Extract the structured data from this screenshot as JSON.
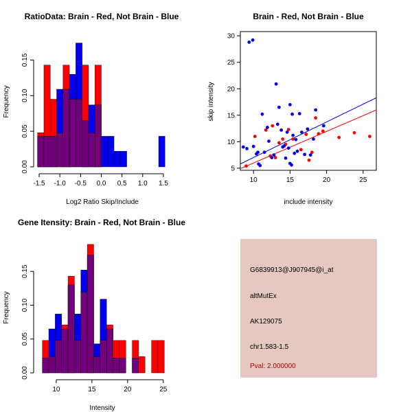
{
  "colors": {
    "red": "#ff0000",
    "blue": "#0000ee",
    "purple": "#72007a",
    "info_bg": "#e6c8c2",
    "pval": "#b40000",
    "axis": "#000000"
  },
  "chart_data": [
    {
      "id": "ratio",
      "type": "bar",
      "title": "RatioData: Brain - Red, Not Brain - Blue",
      "xlabel": "Log2 Ratio Skip/Include",
      "ylabel": "Frequency",
      "xlim": [
        -1.5,
        1.6
      ],
      "ylim": [
        0,
        0.19
      ],
      "xticks": [
        -1.5,
        -1.0,
        -0.5,
        0.0,
        0.5,
        1.0,
        1.5
      ],
      "xtick_labels": [
        "-1.5",
        "-1.0",
        "-0.5",
        "0.0",
        "0.5",
        "1.0",
        "1.5"
      ],
      "yticks": [
        0.0,
        0.05,
        0.1,
        0.15
      ],
      "ytick_labels": [
        "0.00",
        "0.05",
        "0.10",
        "0.15"
      ],
      "bin_width": 0.1538,
      "series": [
        {
          "name": "Brain",
          "color": "red",
          "bins": [
            {
              "x": -1.462,
              "v": 0.048
            },
            {
              "x": -1.308,
              "v": 0.143
            },
            {
              "x": -1.154,
              "v": 0.095
            },
            {
              "x": -1.0,
              "v": 0.048
            },
            {
              "x": -0.846,
              "v": 0.143
            },
            {
              "x": -0.692,
              "v": 0.095
            },
            {
              "x": -0.538,
              "v": 0.095
            },
            {
              "x": -0.385,
              "v": 0.143
            },
            {
              "x": -0.231,
              "v": 0.048
            },
            {
              "x": -0.077,
              "v": 0.143
            }
          ]
        },
        {
          "name": "Not Brain",
          "color": "blue",
          "bins": [
            {
              "x": -1.462,
              "v": 0.043
            },
            {
              "x": -1.308,
              "v": 0.043
            },
            {
              "x": -1.154,
              "v": 0.043
            },
            {
              "x": -1.0,
              "v": 0.109
            },
            {
              "x": -0.846,
              "v": 0.109
            },
            {
              "x": -0.692,
              "v": 0.13
            },
            {
              "x": -0.538,
              "v": 0.174
            },
            {
              "x": -0.385,
              "v": 0.065
            },
            {
              "x": -0.231,
              "v": 0.087
            },
            {
              "x": -0.077,
              "v": 0.087
            },
            {
              "x": 0.077,
              "v": 0.043
            },
            {
              "x": 0.231,
              "v": 0.043
            },
            {
              "x": 0.385,
              "v": 0.022
            },
            {
              "x": 0.538,
              "v": 0.022
            },
            {
              "x": 1.462,
              "v": 0.043
            }
          ]
        }
      ]
    },
    {
      "id": "scatter",
      "type": "scatter",
      "title": "Brain - Red, Not Brain - Blue",
      "xlabel": "include intensity",
      "ylabel": "skip intensity",
      "xlim": [
        8.2,
        26.8
      ],
      "ylim": [
        4.6,
        30.8
      ],
      "xticks": [
        10,
        15,
        20,
        25
      ],
      "xtick_labels": [
        "10",
        "15",
        "20",
        "25"
      ],
      "yticks": [
        5,
        10,
        15,
        20,
        25,
        30
      ],
      "ytick_labels": [
        "5",
        "10",
        "15",
        "20",
        "25",
        "30"
      ],
      "series": [
        {
          "name": "Brain",
          "color": "red",
          "points": [
            [
              9.0,
              5.4
            ],
            [
              10.2,
              11.0
            ],
            [
              11.7,
              12.2
            ],
            [
              12.3,
              7.3
            ],
            [
              12.6,
              13.0
            ],
            [
              13.0,
              7.0
            ],
            [
              13.5,
              9.8
            ],
            [
              14.0,
              10.5
            ],
            [
              14.4,
              9.5
            ],
            [
              14.8,
              12.3
            ],
            [
              15.4,
              10.5
            ],
            [
              16.5,
              8.5
            ],
            [
              17.2,
              11.4
            ],
            [
              17.6,
              6.5
            ],
            [
              18.0,
              8.0
            ],
            [
              18.5,
              14.5
            ],
            [
              18.9,
              11.5
            ],
            [
              19.5,
              12.0
            ],
            [
              21.7,
              10.8
            ],
            [
              23.8,
              11.7
            ],
            [
              25.9,
              11.0
            ]
          ]
        },
        {
          "name": "Not Brain",
          "color": "blue",
          "points": [
            [
              9.4,
              28.8
            ],
            [
              9.9,
              29.2
            ],
            [
              8.6,
              9.0
            ],
            [
              9.1,
              8.7
            ],
            [
              10.0,
              9.1
            ],
            [
              10.4,
              7.7
            ],
            [
              10.6,
              8.0
            ],
            [
              10.7,
              5.8
            ],
            [
              10.9,
              5.5
            ],
            [
              11.2,
              15.2
            ],
            [
              11.5,
              8.0
            ],
            [
              11.9,
              12.7
            ],
            [
              12.1,
              10.1
            ],
            [
              12.5,
              7.0
            ],
            [
              12.8,
              7.5
            ],
            [
              13.1,
              20.9
            ],
            [
              13.3,
              13.3
            ],
            [
              13.5,
              16.5
            ],
            [
              13.8,
              12.2
            ],
            [
              14.0,
              9.0
            ],
            [
              14.2,
              9.2
            ],
            [
              14.4,
              6.9
            ],
            [
              14.6,
              11.8
            ],
            [
              14.8,
              8.8
            ],
            [
              15.0,
              17.0
            ],
            [
              15.0,
              5.9
            ],
            [
              15.2,
              5.6
            ],
            [
              15.3,
              15.2
            ],
            [
              15.4,
              11.2
            ],
            [
              15.6,
              7.8
            ],
            [
              15.8,
              10.4
            ],
            [
              16.0,
              8.2
            ],
            [
              16.3,
              15.3
            ],
            [
              16.6,
              11.8
            ],
            [
              17.0,
              7.6
            ],
            [
              17.4,
              12.4
            ],
            [
              17.8,
              7.5
            ],
            [
              18.2,
              10.5
            ],
            [
              18.5,
              16.0
            ],
            [
              19.6,
              13.0
            ]
          ]
        }
      ],
      "fits": [
        {
          "name": "Not Brain fit",
          "color": "blue",
          "p1": [
            8.2,
            5.8
          ],
          "p2": [
            26.8,
            18.3
          ]
        },
        {
          "name": "Brain fit",
          "color": "red",
          "p1": [
            8.2,
            4.9
          ],
          "p2": [
            26.8,
            16.0
          ]
        }
      ]
    },
    {
      "id": "intensity",
      "type": "bar",
      "title": "Gene Itensity: Brain - Red, Not Brain - Blue",
      "xlabel": "Intensity",
      "ylabel": "Frequency",
      "xlim": [
        7.6,
        25.6
      ],
      "ylim": [
        0,
        0.2
      ],
      "xticks": [
        10,
        15,
        20,
        25
      ],
      "xtick_labels": [
        "10",
        "15",
        "20",
        "25"
      ],
      "yticks": [
        0.0,
        0.05,
        0.1,
        0.15
      ],
      "ytick_labels": [
        "0.00",
        "0.05",
        "0.10",
        "0.15"
      ],
      "bin_width": 0.9,
      "series": [
        {
          "name": "Brain",
          "color": "red",
          "bins": [
            {
              "x": 8.5,
              "v": 0.048
            },
            {
              "x": 9.4,
              "v": 0.024
            },
            {
              "x": 10.3,
              "v": 0.048
            },
            {
              "x": 11.2,
              "v": 0.071
            },
            {
              "x": 12.1,
              "v": 0.143
            },
            {
              "x": 13.0,
              "v": 0.048
            },
            {
              "x": 13.9,
              "v": 0.119
            },
            {
              "x": 14.8,
              "v": 0.19
            },
            {
              "x": 15.7,
              "v": 0.024
            },
            {
              "x": 16.6,
              "v": 0.048
            },
            {
              "x": 17.5,
              "v": 0.071
            },
            {
              "x": 18.4,
              "v": 0.048
            },
            {
              "x": 19.3,
              "v": 0.048
            },
            {
              "x": 21.1,
              "v": 0.048
            },
            {
              "x": 22.0,
              "v": 0.024
            },
            {
              "x": 23.8,
              "v": 0.048
            },
            {
              "x": 24.7,
              "v": 0.048
            }
          ]
        },
        {
          "name": "Not Brain",
          "color": "blue",
          "bins": [
            {
              "x": 8.5,
              "v": 0.022
            },
            {
              "x": 9.4,
              "v": 0.065
            },
            {
              "x": 10.3,
              "v": 0.087
            },
            {
              "x": 11.2,
              "v": 0.065
            },
            {
              "x": 12.1,
              "v": 0.13
            },
            {
              "x": 13.0,
              "v": 0.087
            },
            {
              "x": 13.9,
              "v": 0.152
            },
            {
              "x": 14.8,
              "v": 0.174
            },
            {
              "x": 15.7,
              "v": 0.043
            },
            {
              "x": 16.6,
              "v": 0.109
            },
            {
              "x": 17.5,
              "v": 0.065
            },
            {
              "x": 18.4,
              "v": 0.022
            },
            {
              "x": 19.3,
              "v": 0.022
            },
            {
              "x": 21.1,
              "v": 0.022
            }
          ]
        }
      ]
    }
  ],
  "info_panel": {
    "probe": "G6839913@J907945@i_at",
    "method": "altMutEx",
    "accession": "AK129075",
    "location": "chr1.583-1.5",
    "pval": "Pval: 2.000000"
  }
}
